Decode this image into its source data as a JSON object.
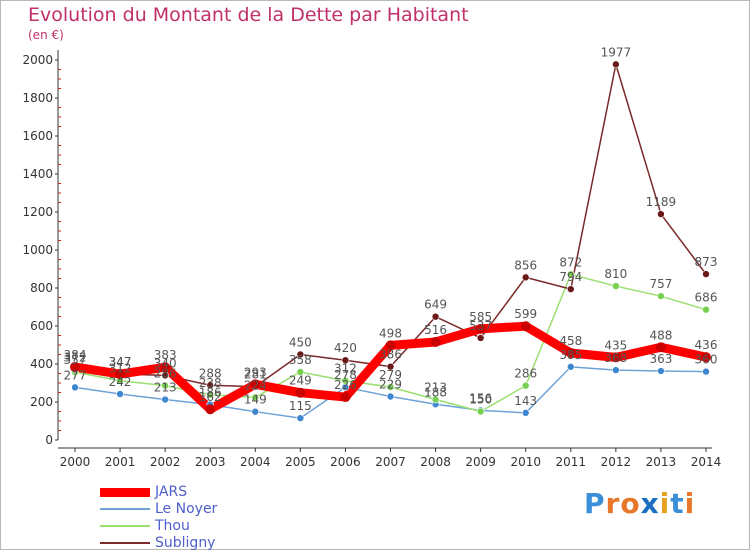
{
  "header": {
    "title": "Evolution du Montant de la Dette par Habitant",
    "subtitle": "(en €)"
  },
  "brand": {
    "letters": [
      "P",
      "r",
      "o",
      "x",
      "i",
      "t",
      "i"
    ],
    "colors": [
      "#3a8fd8",
      "#e8772a",
      "#e8772a",
      "#1a6fc0",
      "#e8a020",
      "#3a8fd8",
      "#e8772a"
    ]
  },
  "chart_data": {
    "type": "line",
    "title": "Evolution du Montant de la Dette par Habitant",
    "subtitle": "(en €)",
    "x": [
      "2000",
      "2001",
      "2002",
      "2003",
      "2004",
      "2005",
      "2006",
      "2007",
      "2008",
      "2009",
      "2010",
      "2011",
      "2012",
      "2013",
      "2014"
    ],
    "yticks": [
      0,
      200,
      400,
      600,
      800,
      1000,
      1200,
      1400,
      1600,
      1800,
      2000
    ],
    "ylim": [
      0,
      2000
    ],
    "grid": false,
    "legend_position": "bottom-left",
    "series": [
      {
        "name": "JARS",
        "color": "#ff0000",
        "marker": "#cc0000",
        "width": 9,
        "values": [
          384,
          347,
          383,
          162,
          293,
          249,
          226,
          498,
          516,
          585,
          599,
          458,
          435,
          488,
          436
        ]
      },
      {
        "name": "Le Noyer",
        "color": "#6fa3d8",
        "marker": "#3f86d0",
        "width": 1.5,
        "values": [
          277,
          242,
          213,
          186,
          149,
          115,
          278,
          229,
          188,
          156,
          143,
          385,
          368,
          363,
          360
        ]
      },
      {
        "name": "Thou",
        "color": "#99e070",
        "marker": "#77d050",
        "width": 1.5,
        "values": [
          357,
          312,
          286,
          238,
          224,
          358,
          312,
          279,
          213,
          150,
          286,
          872,
          810,
          757,
          686
        ]
      },
      {
        "name": "Subligny",
        "color": "#7a2a2a",
        "marker": "#6a1818",
        "width": 1.5,
        "values": [
          372,
          347,
          340,
          288,
          281,
          450,
          420,
          386,
          649,
          537,
          856,
          794,
          1977,
          1189,
          873
        ]
      }
    ]
  }
}
